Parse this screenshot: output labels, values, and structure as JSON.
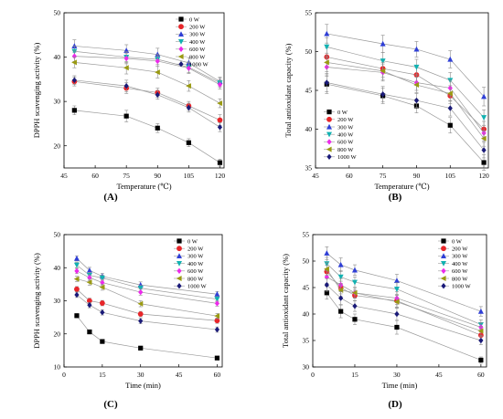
{
  "figure": {
    "colors": {
      "0 W": "#000000",
      "200 W": "#e8262a",
      "300 W": "#2f3fd6",
      "400 W": "#12b1b1",
      "600 W": "#ec2bea",
      "800 W": "#9a9a12",
      "1000 W": "#1a1a78"
    },
    "markers": {
      "0 W": "square",
      "200 W": "circle",
      "300 W": "triangle-up",
      "400 W": "triangle-down",
      "600 W": "diamond",
      "800 W": "triangle-left",
      "1000 W": "diamond"
    }
  },
  "chart_data": [
    {
      "type": "scatter",
      "panel_label": "(A)",
      "xlabel": "Temperature (℃)",
      "ylabel": "DPPH scavenging activity (%)",
      "xlim": [
        45,
        122
      ],
      "ylim": [
        15,
        50
      ],
      "xticks": [
        45,
        60,
        75,
        90,
        105,
        120
      ],
      "yticks": [
        20,
        30,
        40,
        50
      ],
      "legend_position": "top-right",
      "x": [
        50,
        75,
        90,
        105,
        120
      ],
      "series": [
        {
          "name": "0 W",
          "values": [
            28.0,
            26.7,
            24.0,
            20.7,
            16.2
          ],
          "errors": [
            1.0,
            1.3,
            1.0,
            0.9,
            0.8
          ]
        },
        {
          "name": "200 W",
          "values": [
            34.5,
            33.0,
            32.0,
            29.0,
            25.8
          ],
          "errors": [
            1.0,
            1.2,
            1.0,
            1.0,
            1.2
          ]
        },
        {
          "name": "300 W",
          "values": [
            42.5,
            41.5,
            40.6,
            38.7,
            34.5
          ],
          "errors": [
            1.4,
            1.3,
            1.4,
            1.2,
            1.0
          ]
        },
        {
          "name": "400 W",
          "values": [
            41.3,
            40.0,
            39.5,
            37.7,
            34.2
          ],
          "errors": [
            1.2,
            1.2,
            1.2,
            1.2,
            1.0
          ]
        },
        {
          "name": "600 W",
          "values": [
            40.2,
            39.7,
            39.1,
            37.5,
            33.8
          ],
          "errors": [
            1.2,
            1.2,
            1.2,
            1.2,
            1.0
          ]
        },
        {
          "name": "800 W",
          "values": [
            38.8,
            37.6,
            36.6,
            33.5,
            29.6
          ],
          "errors": [
            1.2,
            1.4,
            1.3,
            1.2,
            1.0
          ]
        },
        {
          "name": "1000 W",
          "values": [
            34.8,
            33.5,
            31.5,
            28.6,
            24.2
          ],
          "errors": [
            1.0,
            1.3,
            1.0,
            1.0,
            1.0
          ]
        }
      ]
    },
    {
      "type": "scatter",
      "panel_label": "(B)",
      "xlabel": "Temperature (℃)",
      "ylabel": "Total antioxidant capacity (%)",
      "xlim": [
        45,
        122
      ],
      "ylim": [
        35,
        55
      ],
      "xticks": [
        45,
        60,
        75,
        90,
        105,
        120
      ],
      "yticks": [
        35,
        40,
        45,
        50,
        55
      ],
      "legend_position": "bottom-left",
      "x": [
        50,
        75,
        90,
        105,
        120
      ],
      "series": [
        {
          "name": "0 W",
          "values": [
            45.8,
            44.3,
            43.0,
            40.5,
            35.7
          ],
          "errors": [
            1.2,
            1.0,
            0.9,
            1.0,
            1.0
          ]
        },
        {
          "name": "200 W",
          "values": [
            49.3,
            47.8,
            47.0,
            44.3,
            40.0
          ],
          "errors": [
            1.2,
            1.1,
            1.0,
            1.0,
            1.0
          ]
        },
        {
          "name": "300 W",
          "values": [
            52.3,
            51.0,
            50.3,
            49.0,
            44.2
          ],
          "errors": [
            1.2,
            1.1,
            1.0,
            1.1,
            1.2
          ]
        },
        {
          "name": "400 W",
          "values": [
            50.6,
            48.8,
            48.0,
            46.3,
            41.5
          ],
          "errors": [
            1.2,
            1.1,
            1.0,
            1.0,
            1.0
          ]
        },
        {
          "name": "600 W",
          "values": [
            48.0,
            47.3,
            46.0,
            45.3,
            39.5
          ],
          "errors": [
            1.2,
            1.1,
            1.0,
            1.0,
            1.0
          ]
        },
        {
          "name": "800 W",
          "values": [
            48.6,
            47.5,
            45.7,
            44.6,
            38.8
          ],
          "errors": [
            1.2,
            1.1,
            1.0,
            1.0,
            1.0
          ]
        },
        {
          "name": "1000 W",
          "values": [
            46.0,
            44.5,
            43.7,
            42.7,
            37.3
          ],
          "errors": [
            1.2,
            1.0,
            0.9,
            1.0,
            1.0
          ]
        }
      ]
    },
    {
      "type": "scatter",
      "panel_label": "(C)",
      "xlabel": "Time (min)",
      "ylabel": "DPPH scavenging activity (%)",
      "xlim": [
        0,
        62
      ],
      "ylim": [
        10,
        50
      ],
      "xticks": [
        0,
        15,
        30,
        45,
        60
      ],
      "yticks": [
        10,
        20,
        30,
        40,
        50
      ],
      "legend_position": "top-right",
      "x": [
        5,
        10,
        15,
        30,
        60
      ],
      "series": [
        {
          "name": "0 W",
          "values": [
            25.5,
            20.6,
            17.7,
            15.7,
            12.7
          ],
          "errors": [
            0.6,
            0.6,
            0.6,
            0.6,
            0.5
          ]
        },
        {
          "name": "200 W",
          "values": [
            33.5,
            30.0,
            29.3,
            26.0,
            24.0
          ],
          "errors": [
            0.8,
            0.8,
            0.8,
            0.8,
            0.8
          ]
        },
        {
          "name": "300 W",
          "values": [
            42.8,
            39.2,
            37.4,
            34.8,
            32.0
          ],
          "errors": [
            0.8,
            0.9,
            0.9,
            0.9,
            0.8
          ]
        },
        {
          "name": "400 W",
          "values": [
            40.8,
            37.7,
            36.9,
            33.8,
            30.5
          ],
          "errors": [
            0.8,
            0.9,
            0.9,
            0.9,
            0.8
          ]
        },
        {
          "name": "600 W",
          "values": [
            39.0,
            37.0,
            35.5,
            32.6,
            29.2
          ],
          "errors": [
            0.8,
            0.9,
            0.9,
            0.9,
            0.8
          ]
        },
        {
          "name": "800 W",
          "values": [
            36.6,
            35.6,
            34.1,
            29.1,
            25.4
          ],
          "errors": [
            0.8,
            0.9,
            0.9,
            0.9,
            0.8
          ]
        },
        {
          "name": "1000 W",
          "values": [
            31.8,
            28.7,
            26.5,
            23.9,
            21.3
          ],
          "errors": [
            0.8,
            0.8,
            0.8,
            0.8,
            0.8
          ]
        }
      ]
    },
    {
      "type": "scatter",
      "panel_label": "(D)",
      "xlabel": "Time (min)",
      "ylabel": "Total antioxidant capacity (%)",
      "xlim": [
        0,
        62
      ],
      "ylim": [
        30,
        55
      ],
      "xticks": [
        0,
        15,
        30,
        45,
        60
      ],
      "yticks": [
        30,
        35,
        40,
        45,
        50,
        55
      ],
      "legend_position": "top-right",
      "x": [
        5,
        10,
        15,
        30,
        60
      ],
      "series": [
        {
          "name": "0 W",
          "values": [
            44.0,
            40.5,
            39.0,
            37.5,
            31.3
          ],
          "errors": [
            1.2,
            1.2,
            1.0,
            1.3,
            0.6
          ]
        },
        {
          "name": "200 W",
          "values": [
            48.0,
            45.0,
            43.5,
            42.5,
            36.0
          ],
          "errors": [
            1.2,
            1.2,
            1.0,
            1.2,
            0.8
          ]
        },
        {
          "name": "300 W",
          "values": [
            51.5,
            49.3,
            48.3,
            46.3,
            40.5
          ],
          "errors": [
            1.2,
            1.3,
            1.0,
            1.2,
            0.9
          ]
        },
        {
          "name": "400 W",
          "values": [
            49.5,
            47.0,
            46.0,
            44.7,
            38.0
          ],
          "errors": [
            1.2,
            1.2,
            1.0,
            1.2,
            0.9
          ]
        },
        {
          "name": "600 W",
          "values": [
            47.0,
            45.5,
            44.0,
            43.0,
            37.5
          ],
          "errors": [
            1.2,
            1.2,
            1.0,
            1.2,
            0.9
          ]
        },
        {
          "name": "800 W",
          "values": [
            48.5,
            44.5,
            44.0,
            42.3,
            36.8
          ],
          "errors": [
            1.2,
            1.2,
            1.0,
            1.2,
            0.9
          ]
        },
        {
          "name": "1000 W",
          "values": [
            45.5,
            43.0,
            41.5,
            40.0,
            35.0
          ],
          "errors": [
            1.2,
            1.2,
            1.0,
            1.2,
            0.8
          ]
        }
      ]
    }
  ]
}
